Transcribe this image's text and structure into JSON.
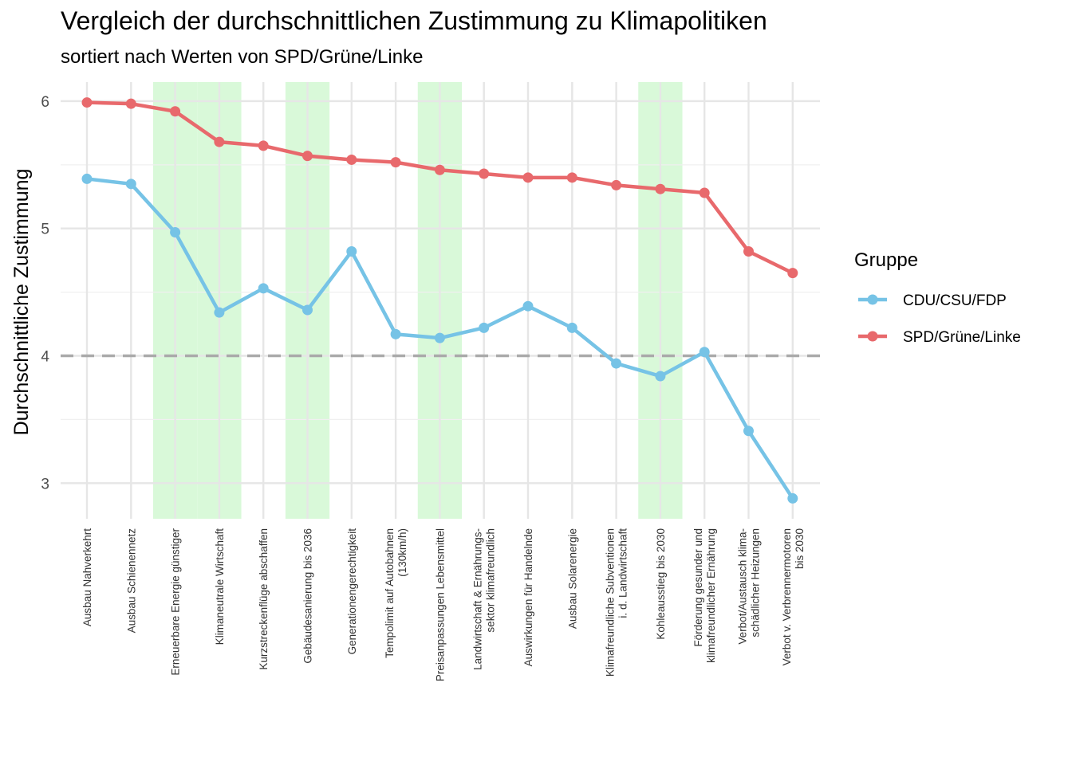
{
  "chart_data": {
    "type": "line",
    "title": "Vergleich der durchschnittlichen Zustimmung zu Klimapolitiken",
    "subtitle": "sortiert nach Werten von SPD/Grüne/Linke",
    "ylabel": "Durchschnittliche Zustimmung",
    "xlabel": "",
    "ylim": [
      2.72,
      6.15
    ],
    "yticks": [
      3,
      4,
      5,
      6
    ],
    "reference_line": 4,
    "grid": true,
    "legend": {
      "title": "Gruppe",
      "position": "right"
    },
    "categories": [
      [
        "Ausbau Nahverkehrt"
      ],
      [
        "Ausbau Schienennetz"
      ],
      [
        "Erneuerbare Energie günstiger"
      ],
      [
        "Klimaneutrale Wirtschaft"
      ],
      [
        "Kurzstreckenflüge abschaffen"
      ],
      [
        "Gebäudesanierung bis 2036"
      ],
      [
        "Generationengerechtigkeit"
      ],
      [
        "Tempolimit auf Autobahnen",
        "(130km/h)"
      ],
      [
        "Preisanpassungen Lebensmittel"
      ],
      [
        "Landwirtschaft & Ernährungs-",
        "sektor klimafreundlich"
      ],
      [
        "Auswirkungen für Handelnde"
      ],
      [
        "Ausbau Solarenergie"
      ],
      [
        "Klimafreundliche Subventionen",
        "i. d. Landwirtschaft"
      ],
      [
        "Kohleausstieg bis 2030"
      ],
      [
        "Förderung gesunder und",
        "klimafreundlicher Ernährung"
      ],
      [
        "Verbot/Austausch klima-",
        "schädlicher Heizungen"
      ],
      [
        "Verbot v. Verbrennermotoren",
        "bis 2030"
      ]
    ],
    "highlighted_categories": [
      2,
      3,
      5,
      8,
      13
    ],
    "highlight_color": "#d9f9d9",
    "series": [
      {
        "name": "CDU/CSU/FDP",
        "color": "#76c3e6",
        "values": [
          5.39,
          5.35,
          4.97,
          4.34,
          4.53,
          4.36,
          4.82,
          4.17,
          4.14,
          4.22,
          4.39,
          4.22,
          3.94,
          3.84,
          4.03,
          3.41,
          2.88
        ]
      },
      {
        "name": "SPD/Grüne/Linke",
        "color": "#e8696c",
        "values": [
          5.99,
          5.98,
          5.92,
          5.68,
          5.65,
          5.57,
          5.54,
          5.52,
          5.46,
          5.43,
          5.4,
          5.4,
          5.34,
          5.31,
          5.28,
          4.82,
          4.65
        ]
      }
    ]
  }
}
